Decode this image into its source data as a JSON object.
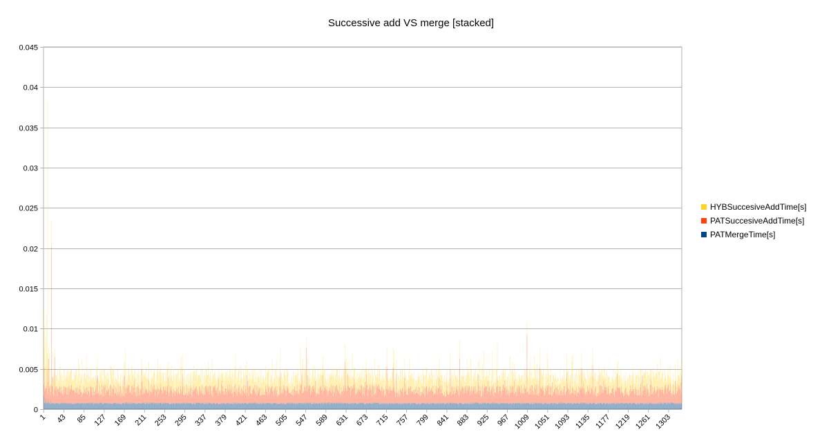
{
  "chart_data": {
    "type": "bar",
    "stacked": true,
    "title": "Successive add VS merge [stacked]",
    "xlabel": "",
    "ylabel": "",
    "ylim": [
      0,
      0.045
    ],
    "yticks": [
      "0",
      "0.005",
      "0.01",
      "0.015",
      "0.02",
      "0.025",
      "0.03",
      "0.035",
      "0.04",
      "0.045"
    ],
    "x_count": 1330,
    "xticks": [
      "1",
      "43",
      "85",
      "127",
      "169",
      "211",
      "253",
      "295",
      "337",
      "379",
      "421",
      "463",
      "505",
      "547",
      "589",
      "631",
      "673",
      "715",
      "757",
      "799",
      "841",
      "883",
      "925",
      "967",
      "1009",
      "1051",
      "1093",
      "1135",
      "1177",
      "1219",
      "1261",
      "1303"
    ],
    "grid": true,
    "legend_position": "right",
    "series": [
      {
        "name": "PATMergeTime[s]",
        "color": "#004586",
        "typical": 0.0007,
        "spikes": [
          {
            "x": 1,
            "value": 0.0016
          },
          {
            "x": 5,
            "value": 0.0013
          },
          {
            "x": 10,
            "value": 0.0012
          },
          {
            "x": 15,
            "value": 0.0011
          },
          {
            "x": 173,
            "value": 0.0009
          }
        ]
      },
      {
        "name": "PATSuccesiveAddTime[s]",
        "color": "#ff420e",
        "typical": 0.0016,
        "spikes": [
          {
            "x": 2,
            "value": 0.0045
          },
          {
            "x": 8,
            "value": 0.004
          },
          {
            "x": 11,
            "value": 0.0055
          },
          {
            "x": 17,
            "value": 0.0195
          },
          {
            "x": 24,
            "value": 0.0058
          },
          {
            "x": 170,
            "value": 0.0035
          },
          {
            "x": 548,
            "value": 0.0068
          },
          {
            "x": 629,
            "value": 0.0053
          },
          {
            "x": 716,
            "value": 0.0045
          },
          {
            "x": 729,
            "value": 0.0045
          },
          {
            "x": 868,
            "value": 0.0055
          },
          {
            "x": 1008,
            "value": 0.0085
          },
          {
            "x": 1122,
            "value": 0.0045
          },
          {
            "x": 1145,
            "value": 0.0048
          }
        ]
      },
      {
        "name": "HYBSuccesiveAddTime[s]",
        "color": "#ffd320",
        "typical": 0.0017,
        "spikes": [
          {
            "x": 1,
            "value": 0.009
          },
          {
            "x": 3,
            "value": 0.0083
          },
          {
            "x": 5,
            "value": 0.0065
          },
          {
            "x": 7,
            "value": 0.0087
          },
          {
            "x": 9,
            "value": 0.0365
          },
          {
            "x": 13,
            "value": 0.004
          },
          {
            "x": 17,
            "value": 0.0033
          },
          {
            "x": 22,
            "value": 0.0025
          },
          {
            "x": 35,
            "value": 0.003
          },
          {
            "x": 171,
            "value": 0.0055
          },
          {
            "x": 549,
            "value": 0.0025
          },
          {
            "x": 644,
            "value": 0.0045
          },
          {
            "x": 730,
            "value": 0.003
          },
          {
            "x": 918,
            "value": 0.0045
          },
          {
            "x": 1007,
            "value": 0.0022
          },
          {
            "x": 1050,
            "value": 0.0045
          },
          {
            "x": 1143,
            "value": 0.003
          }
        ]
      }
    ]
  }
}
